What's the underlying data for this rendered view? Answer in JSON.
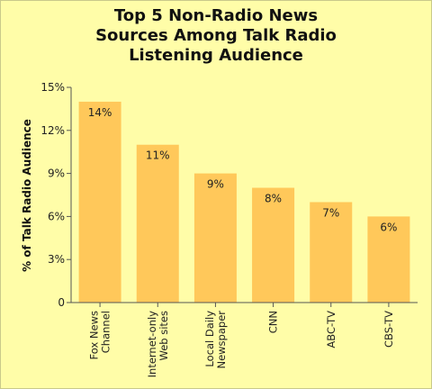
{
  "chart_data": {
    "type": "bar",
    "title_lines": [
      "Top 5 Non-Radio News",
      "Sources Among Talk Radio",
      "Listening Audience"
    ],
    "ylabel": "% of Talk Radio Audience",
    "xlabel": "",
    "ylim": [
      0,
      15
    ],
    "yticks": [
      0,
      3,
      6,
      9,
      12,
      15
    ],
    "ytick_labels": [
      "0",
      "3%",
      "6%",
      "9%",
      "12%",
      "15%"
    ],
    "categories": [
      [
        "Fox News",
        "Channel"
      ],
      [
        "Internet-only",
        "Web sites"
      ],
      [
        "Local Daily",
        "Newspaper"
      ],
      [
        "CNN"
      ],
      [
        "ABC-TV"
      ],
      [
        "CBS-TV"
      ]
    ],
    "values": [
      14,
      11,
      9,
      8,
      7,
      6
    ],
    "value_labels": [
      "14%",
      "11%",
      "9%",
      "8%",
      "7%",
      "6%"
    ],
    "bar_color": "#ffc85a",
    "grid": false,
    "legend": "none"
  }
}
